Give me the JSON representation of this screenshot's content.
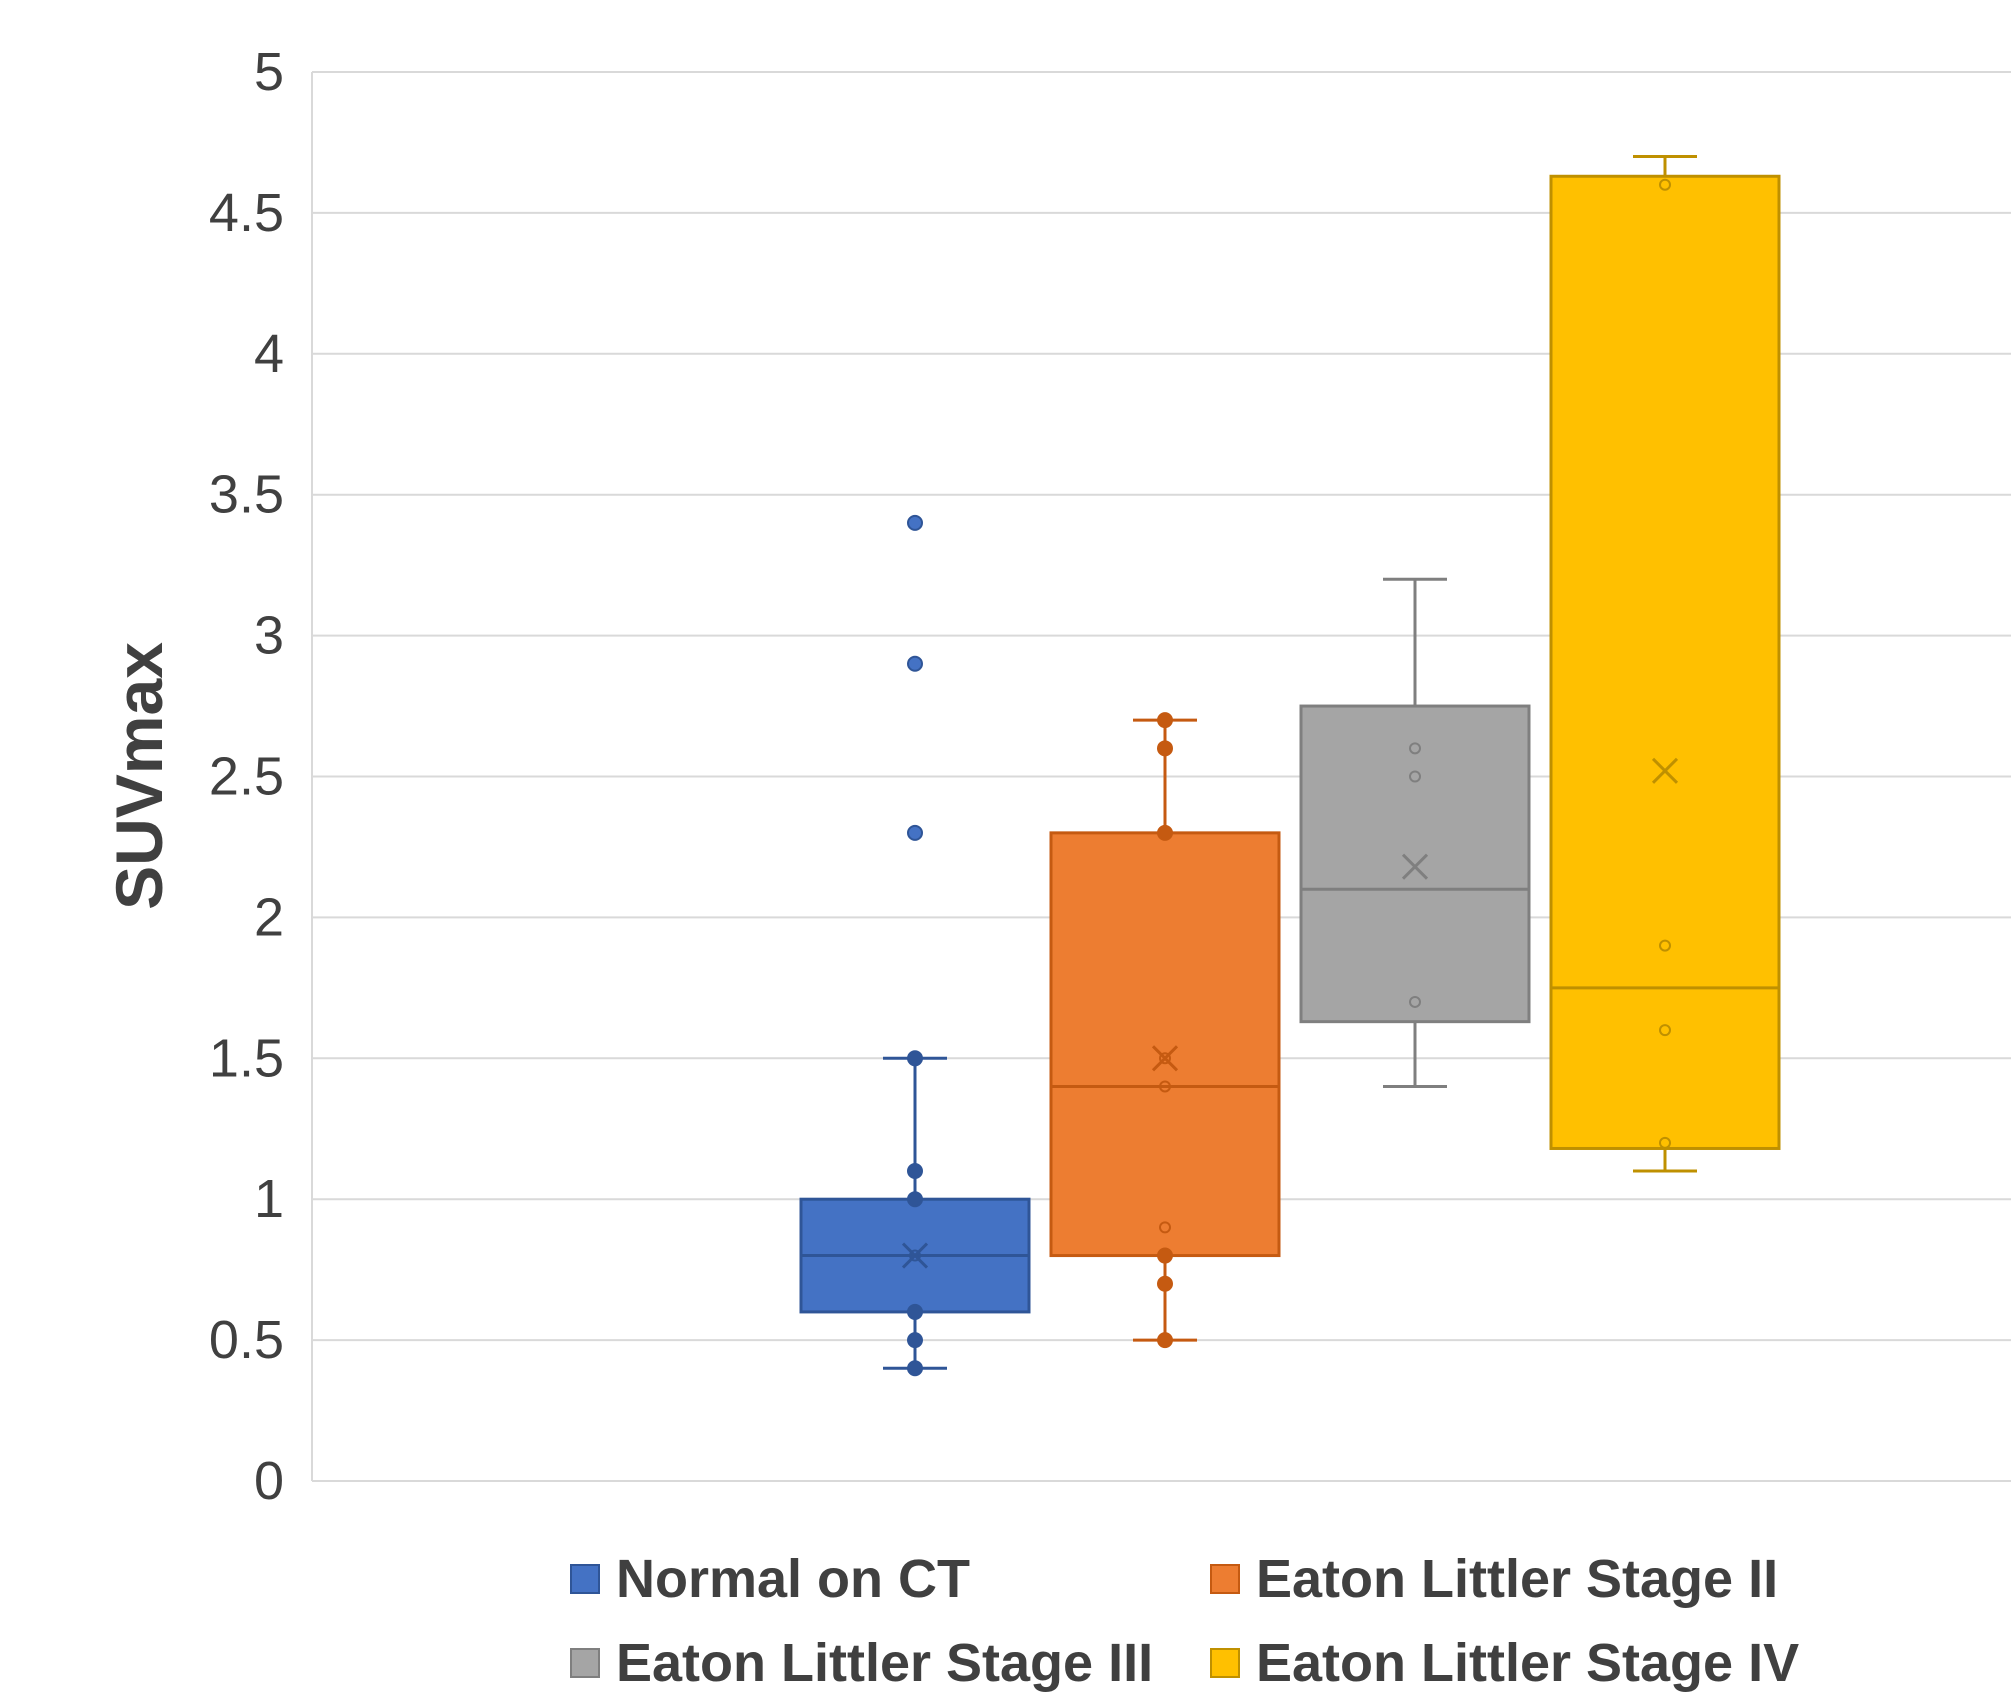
{
  "chart_data": {
    "type": "box",
    "title": "",
    "xlabel": "",
    "ylabel": "SUVmax",
    "ylim": [
      0,
      5
    ],
    "yticks": [
      "0",
      "0.5",
      "1",
      "1.5",
      "2",
      "2.5",
      "3",
      "3.5",
      "4",
      "4.5",
      "5"
    ],
    "grid": true,
    "legend_position": "bottom",
    "series": [
      {
        "name": "Normal on CT",
        "color": "#4472C4",
        "q1": 0.6,
        "median": 0.8,
        "q3": 1.0,
        "whisker_low": 0.4,
        "whisker_high": 1.5,
        "mean": 0.8,
        "points": [
          0.4,
          0.5,
          0.6,
          0.8,
          1.0,
          1.1,
          1.5
        ],
        "outliers": [
          2.3,
          2.9,
          3.4
        ]
      },
      {
        "name": "Eaton Littler Stage II",
        "color": "#ED7D31",
        "q1": 0.8,
        "median": 1.4,
        "q3": 2.3,
        "whisker_low": 0.5,
        "whisker_high": 2.7,
        "mean": 1.5,
        "points": [
          0.5,
          0.7,
          0.8,
          0.9,
          1.4,
          1.5,
          2.3,
          2.6,
          2.7
        ],
        "outliers": []
      },
      {
        "name": "Eaton Littler Stage III",
        "color": "#A5A5A5",
        "q1": 1.63,
        "median": 2.1,
        "q3": 2.75,
        "whisker_low": 1.4,
        "whisker_high": 3.2,
        "mean": 2.18,
        "points": [
          1.7,
          2.5,
          2.6
        ],
        "outliers": []
      },
      {
        "name": "Eaton Littler Stage IV",
        "color": "#FFC000",
        "q1": 1.18,
        "median": 1.75,
        "q3": 4.63,
        "whisker_low": 1.1,
        "whisker_high": 4.7,
        "mean": 2.52,
        "points": [
          1.2,
          1.6,
          1.9,
          4.6
        ],
        "outliers": []
      }
    ]
  }
}
